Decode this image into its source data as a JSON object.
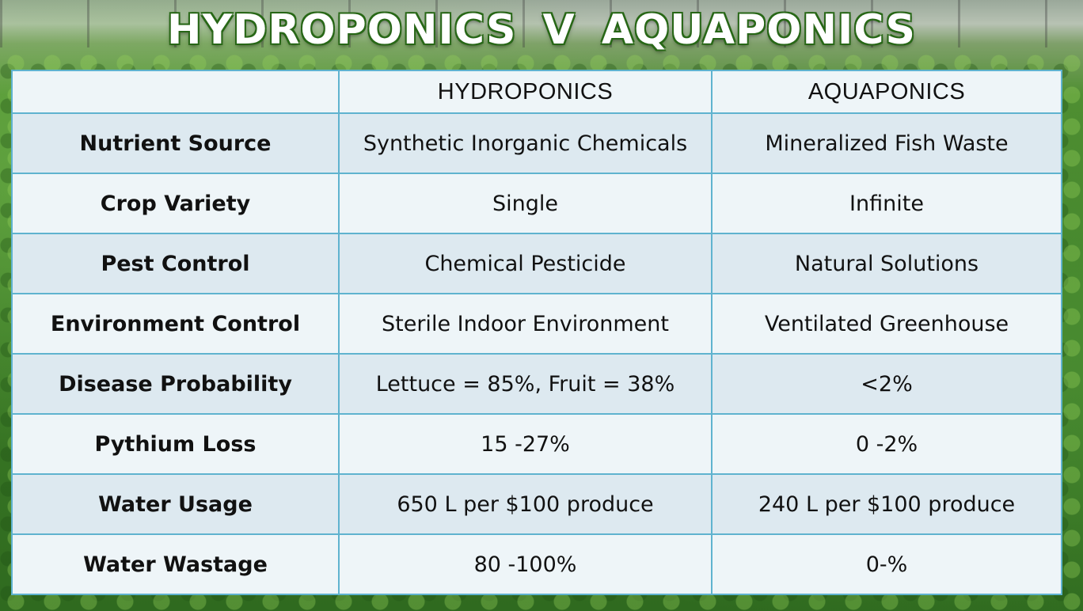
{
  "title": "HYDROPONICS V AQUAPONICS",
  "header": {
    "col1": "",
    "col2": "HYDROPONICS",
    "col3": "AQUAPONICS"
  },
  "rows": [
    {
      "label": "Nutrient Source",
      "hydro": "Synthetic Inorganic Chemicals",
      "aqua": "Mineralized Fish Waste"
    },
    {
      "label": "Crop Variety",
      "hydro": "Single",
      "aqua": "Infinite"
    },
    {
      "label": "Pest Control",
      "hydro": "Chemical Pesticide",
      "aqua": "Natural Solutions"
    },
    {
      "label": "Environment Control",
      "hydro": "Sterile Indoor Environment",
      "aqua": "Ventilated Greenhouse"
    },
    {
      "label": "Disease Probability",
      "hydro": "Lettuce = 85%, Fruit = 38%",
      "aqua": "<2%"
    },
    {
      "label": "Pythium Loss",
      "hydro": "15 -27%",
      "aqua": "0 -2%"
    },
    {
      "label": "Water Usage",
      "hydro": "650 L per $100 produce",
      "aqua": "240 L per $100 produce"
    },
    {
      "label": "Water Wastage",
      "hydro": "80 -100%",
      "aqua": "0-%"
    }
  ],
  "colors": {
    "border": "#5fb3cf",
    "row_shaded": "#dde9f0",
    "row_light": "#eef5f8",
    "title_outline": "#2a6a18"
  }
}
